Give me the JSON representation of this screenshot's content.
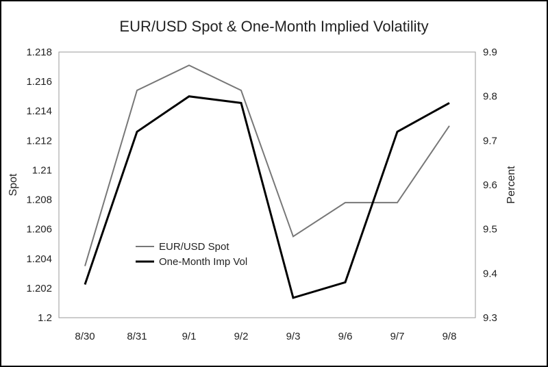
{
  "chart_data": {
    "type": "line",
    "title": "EUR/USD Spot & One-Month Implied Volatility",
    "categories": [
      "8/30",
      "8/31",
      "9/1",
      "9/2",
      "9/3",
      "9/6",
      "9/7",
      "9/8"
    ],
    "y_left": {
      "label": "Spot",
      "range": [
        1.2,
        1.218
      ],
      "ticks": [
        "1.2",
        "1.202",
        "1.204",
        "1.206",
        "1.208",
        "1.21",
        "1.212",
        "1.214",
        "1.216",
        "1.218"
      ]
    },
    "y_right": {
      "label": "Percent",
      "range": [
        9.3,
        9.9
      ],
      "ticks": [
        "9.3",
        "9.4",
        "9.5",
        "9.6",
        "9.7",
        "9.8",
        "9.9"
      ]
    },
    "series": [
      {
        "name": "EUR/USD Spot",
        "axis": "left",
        "color": "#777777",
        "values": [
          1.2035,
          1.2154,
          1.2171,
          1.2154,
          1.2055,
          1.2078,
          1.2078,
          1.213
        ]
      },
      {
        "name": "One-Month Imp Vol",
        "axis": "right",
        "color": "#000000",
        "values": [
          9.375,
          9.72,
          9.8,
          9.785,
          9.345,
          9.38,
          9.72,
          9.785
        ]
      }
    ],
    "legend_position": "left-center",
    "grid": false
  }
}
